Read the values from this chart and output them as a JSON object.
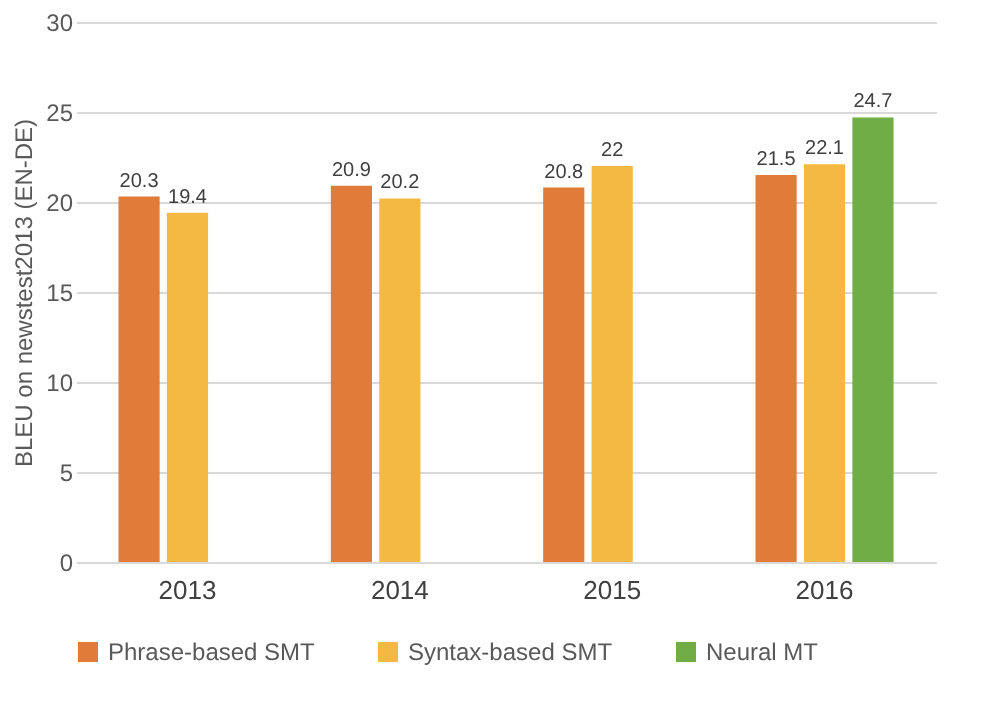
{
  "chart_data": {
    "type": "bar",
    "ylabel": "BLEU on newstest2013 (EN-DE)",
    "categories": [
      "2013",
      "2014",
      "2015",
      "2016"
    ],
    "series": [
      {
        "name": "Phrase-based SMT",
        "color": "#e07b39",
        "values": [
          20.3,
          20.9,
          20.8,
          21.5
        ]
      },
      {
        "name": "Syntax-based SMT",
        "color": "#f4b942",
        "values": [
          19.4,
          20.2,
          22,
          22.1
        ]
      },
      {
        "name": "Neural MT",
        "color": "#70ad47",
        "values": [
          null,
          null,
          null,
          24.7
        ]
      }
    ],
    "ylim": [
      0,
      30
    ],
    "yticks": [
      0,
      5,
      10,
      15,
      20,
      25,
      30
    ],
    "grid": "y",
    "legend": "bottom",
    "data_labels": true
  }
}
